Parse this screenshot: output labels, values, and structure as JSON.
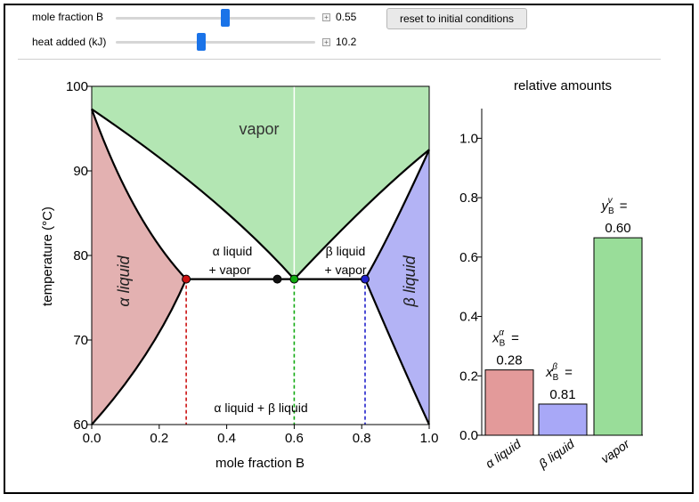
{
  "controls": {
    "mole_fraction": {
      "label": "mole fraction B",
      "value_text": "0.55",
      "fraction": 0.55
    },
    "heat_added": {
      "label": "heat added (kJ)",
      "value_text": "10.2",
      "fraction": 0.43
    },
    "reset_label": "reset to initial conditions"
  },
  "chart_data": [
    {
      "type": "area",
      "xlabel": "mole fraction B",
      "ylabel": "temperature (°C)",
      "xlim": [
        0.0,
        1.0
      ],
      "ylim": [
        60,
        100
      ],
      "x_ticks": [
        "0.0",
        "0.2",
        "0.4",
        "0.6",
        "0.8",
        "1.0"
      ],
      "y_ticks": [
        "60",
        "70",
        "80",
        "90",
        "100"
      ],
      "region_labels": {
        "vapor": "vapor",
        "alpha_liquid": "α liquid",
        "beta_liquid": "β liquid",
        "alpha_vapor_1": "α liquid",
        "alpha_vapor_2": "+ vapor",
        "beta_vapor_1": "β liquid",
        "beta_vapor_2": "+ vapor",
        "alpha_beta": "α liquid + β liquid"
      },
      "three_phase_temperature": 77.2,
      "points": [
        {
          "name": "alpha",
          "x": 0.28,
          "y": 77.2,
          "color": "#cc1111"
        },
        {
          "name": "overall",
          "x": 0.55,
          "y": 77.2,
          "color": "#111111"
        },
        {
          "name": "vapor",
          "x": 0.6,
          "y": 77.2,
          "color": "#11aa11"
        },
        {
          "name": "beta",
          "x": 0.81,
          "y": 77.2,
          "color": "#2222cc"
        }
      ],
      "colors": {
        "vapor": "#b3e6b3",
        "alpha": "#e3b1b1",
        "beta": "#b3b3f5"
      }
    },
    {
      "type": "bar",
      "title": "relative amounts",
      "categories": [
        "α liquid",
        "β liquid",
        "vapor"
      ],
      "values": [
        0.22,
        0.105,
        0.665
      ],
      "ylim": [
        0,
        1.1
      ],
      "y_ticks": [
        "0.0",
        "0.2",
        "0.4",
        "0.6",
        "0.8",
        "1.0"
      ],
      "bar_colors": [
        "#e39a9a",
        "#a8a8f7",
        "#99dd99"
      ],
      "annotations": [
        {
          "symbol": "x",
          "sub": "B",
          "sup": "α",
          "value": "0.28"
        },
        {
          "symbol": "x",
          "sub": "B",
          "sup": "β",
          "value": "0.81"
        },
        {
          "symbol": "y",
          "sub": "B",
          "sup": "v",
          "value": "0.60"
        }
      ]
    }
  ]
}
